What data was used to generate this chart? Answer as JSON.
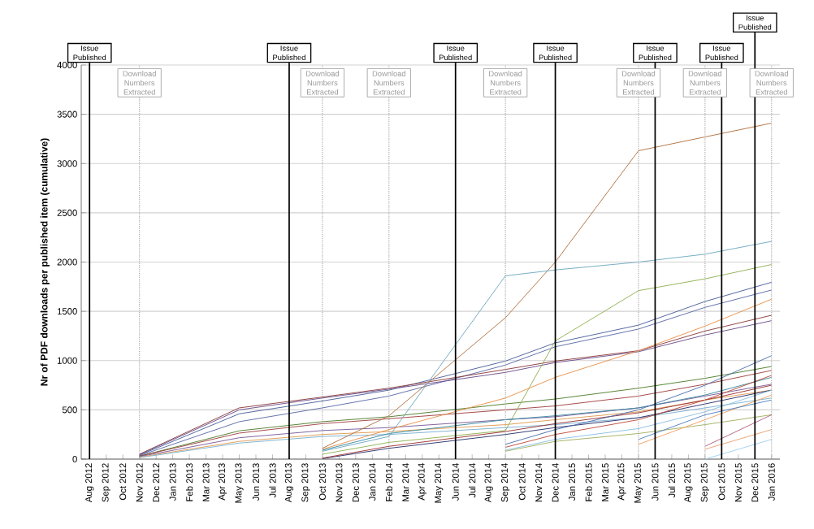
{
  "chart_data": {
    "type": "line",
    "ylabel": "Nr of PDF downloads per published item (cumulative)",
    "categories": [
      "Aug 2012",
      "Sep 2012",
      "Oct 2012",
      "Nov 2012",
      "Dec 2012",
      "Jan 2013",
      "Feb 2013",
      "Mar 2013",
      "Apr 2013",
      "May 2013",
      "Jun 2013",
      "Jul 2013",
      "Aug 2013",
      "Sep 2013",
      "Oct 2013",
      "Nov 2013",
      "Dec 2013",
      "Jan 2014",
      "Feb 2014",
      "Mar 2014",
      "Apr 2014",
      "May 2014",
      "Jun 2014",
      "Jul 2014",
      "Aug 2014",
      "Sep 2014",
      "Oct 2014",
      "Nov 2014",
      "Dec 2014",
      "Jan 2015",
      "Feb 2015",
      "Mar 2015",
      "Apr 2015",
      "May 2015",
      "Jun 2015",
      "Jul 2015",
      "Aug 2015",
      "Sep 2015",
      "Oct 2015",
      "Nov 2015",
      "Dec 2015",
      "Jan 2016"
    ],
    "ylim": [
      0,
      4000
    ],
    "yticks": [
      0,
      500,
      1000,
      1500,
      2000,
      2500,
      3000,
      3500,
      4000
    ],
    "grid": "y",
    "series": [
      {
        "color": "#4a5f9a",
        "values": [
          null,
          null,
          null,
          40,
          null,
          null,
          null,
          null,
          null,
          460,
          null,
          null,
          null,
          null,
          590,
          null,
          null,
          null,
          700,
          null,
          null,
          null,
          null,
          null,
          null,
          995,
          null,
          null,
          1180,
          null,
          null,
          null,
          null,
          1360,
          null,
          null,
          null,
          1600,
          null,
          null,
          null,
          1795
        ]
      },
      {
        "color": "#5a6aa8",
        "values": [
          null,
          null,
          null,
          35,
          null,
          null,
          null,
          null,
          null,
          380,
          null,
          null,
          null,
          null,
          520,
          null,
          null,
          null,
          640,
          null,
          null,
          null,
          null,
          null,
          null,
          955,
          null,
          null,
          1140,
          null,
          null,
          null,
          null,
          1320,
          null,
          null,
          null,
          1540,
          null,
          null,
          null,
          1716
        ]
      },
      {
        "color": "#8b3a3a",
        "values": [
          null,
          null,
          null,
          50,
          null,
          null,
          null,
          null,
          null,
          520,
          null,
          null,
          null,
          null,
          630,
          null,
          null,
          null,
          720,
          null,
          null,
          null,
          null,
          null,
          null,
          910,
          null,
          null,
          995,
          null,
          null,
          null,
          null,
          1100,
          null,
          null,
          null,
          1300,
          null,
          null,
          null,
          1460
        ]
      },
      {
        "color": "#6a4c8a",
        "values": [
          null,
          null,
          null,
          45,
          null,
          null,
          null,
          null,
          null,
          500,
          null,
          null,
          null,
          null,
          620,
          null,
          null,
          null,
          710,
          null,
          null,
          null,
          null,
          null,
          null,
          880,
          null,
          null,
          980,
          null,
          null,
          null,
          null,
          1090,
          null,
          null,
          null,
          1260,
          null,
          null,
          null,
          1405
        ]
      },
      {
        "color": "#4f7d2a",
        "values": [
          null,
          null,
          null,
          30,
          null,
          null,
          null,
          null,
          null,
          287,
          null,
          null,
          null,
          null,
          380,
          null,
          null,
          null,
          430,
          null,
          null,
          null,
          null,
          null,
          null,
          560,
          null,
          null,
          610,
          null,
          null,
          null,
          null,
          720,
          null,
          null,
          null,
          820,
          null,
          null,
          null,
          940
        ]
      },
      {
        "color": "#a04040",
        "values": [
          null,
          null,
          null,
          30,
          null,
          null,
          null,
          null,
          null,
          264,
          null,
          null,
          null,
          null,
          360,
          null,
          null,
          null,
          410,
          null,
          null,
          null,
          null,
          null,
          null,
          500,
          null,
          null,
          540,
          null,
          null,
          null,
          null,
          640,
          null,
          null,
          null,
          760,
          null,
          null,
          null,
          900
        ]
      },
      {
        "color": "#7a5a9a",
        "values": [
          null,
          null,
          null,
          25,
          null,
          null,
          null,
          null,
          null,
          217,
          null,
          null,
          null,
          null,
          290,
          null,
          null,
          null,
          320,
          null,
          null,
          null,
          null,
          null,
          null,
          400,
          null,
          null,
          430,
          null,
          null,
          null,
          null,
          520,
          null,
          null,
          null,
          640,
          null,
          null,
          null,
          760
        ]
      },
      {
        "color": "#e09a50",
        "values": [
          null,
          null,
          null,
          20,
          null,
          null,
          null,
          null,
          null,
          180,
          null,
          null,
          null,
          null,
          250,
          null,
          null,
          null,
          280,
          null,
          null,
          null,
          null,
          null,
          null,
          350,
          null,
          null,
          400,
          null,
          null,
          null,
          null,
          480,
          null,
          null,
          null,
          600,
          null,
          null,
          null,
          700
        ]
      },
      {
        "color": "#7ab0d0",
        "values": [
          null,
          null,
          null,
          15,
          null,
          null,
          null,
          null,
          null,
          163,
          null,
          null,
          null,
          null,
          230,
          null,
          null,
          null,
          250,
          null,
          null,
          null,
          null,
          null,
          null,
          320,
          null,
          null,
          350,
          null,
          null,
          null,
          null,
          420,
          null,
          null,
          null,
          520,
          null,
          null,
          null,
          620
        ]
      },
      {
        "color": "#b07040",
        "values": [
          null,
          null,
          null,
          null,
          null,
          null,
          null,
          null,
          null,
          null,
          null,
          null,
          null,
          null,
          110,
          null,
          null,
          null,
          440,
          null,
          null,
          null,
          null,
          null,
          null,
          1435,
          null,
          null,
          2000,
          null,
          null,
          null,
          null,
          3130,
          null,
          null,
          null,
          3270,
          null,
          null,
          null,
          3410
        ]
      },
      {
        "color": "#6fa8c0",
        "values": [
          null,
          null,
          null,
          null,
          null,
          null,
          null,
          null,
          null,
          null,
          null,
          null,
          null,
          null,
          80,
          null,
          null,
          null,
          230,
          null,
          null,
          null,
          null,
          null,
          null,
          1860,
          null,
          null,
          1920,
          null,
          null,
          null,
          null,
          2000,
          null,
          null,
          null,
          2080,
          null,
          null,
          null,
          2210
        ]
      },
      {
        "color": "#8fb050",
        "values": [
          null,
          null,
          null,
          null,
          null,
          null,
          null,
          null,
          null,
          null,
          null,
          null,
          null,
          null,
          50,
          null,
          null,
          null,
          170,
          null,
          null,
          null,
          null,
          null,
          null,
          290,
          null,
          null,
          1200,
          null,
          null,
          null,
          null,
          1710,
          null,
          null,
          null,
          1830,
          null,
          null,
          null,
          1975
        ]
      },
      {
        "color": "#e89048",
        "values": [
          null,
          null,
          null,
          null,
          null,
          null,
          null,
          null,
          null,
          null,
          null,
          null,
          null,
          null,
          100,
          null,
          null,
          null,
          300,
          null,
          null,
          null,
          null,
          null,
          null,
          620,
          null,
          null,
          830,
          null,
          null,
          null,
          null,
          1100,
          null,
          null,
          null,
          1350,
          null,
          null,
          null,
          1623
        ]
      },
      {
        "color": "#2a2f6a",
        "values": [
          null,
          null,
          null,
          null,
          null,
          null,
          null,
          null,
          null,
          null,
          null,
          null,
          null,
          null,
          5,
          null,
          null,
          null,
          110,
          null,
          null,
          null,
          null,
          null,
          null,
          250,
          null,
          null,
          320,
          null,
          null,
          null,
          null,
          420,
          null,
          null,
          null,
          560,
          null,
          null,
          null,
          700
        ]
      },
      {
        "color": "#9a3030",
        "values": [
          null,
          null,
          null,
          null,
          null,
          null,
          null,
          null,
          null,
          null,
          null,
          null,
          null,
          null,
          10,
          null,
          null,
          null,
          130,
          null,
          null,
          null,
          null,
          null,
          null,
          280,
          null,
          null,
          360,
          null,
          null,
          null,
          null,
          470,
          null,
          null,
          null,
          600,
          null,
          null,
          null,
          750
        ]
      },
      {
        "color": "#3a8aa0",
        "values": [
          null,
          null,
          null,
          null,
          null,
          null,
          null,
          null,
          null,
          null,
          null,
          null,
          null,
          null,
          90,
          null,
          null,
          null,
          260,
          null,
          null,
          null,
          null,
          null,
          null,
          400,
          null,
          null,
          440,
          null,
          null,
          null,
          null,
          520,
          null,
          null,
          null,
          650,
          null,
          null,
          null,
          830
        ]
      },
      {
        "color": "#4a70b0",
        "values": [
          null,
          null,
          null,
          null,
          null,
          null,
          null,
          null,
          null,
          null,
          null,
          null,
          null,
          null,
          null,
          null,
          null,
          null,
          null,
          null,
          null,
          null,
          null,
          null,
          null,
          150,
          null,
          null,
          300,
          null,
          null,
          null,
          null,
          500,
          null,
          null,
          null,
          750,
          null,
          null,
          null,
          1050
        ]
      },
      {
        "color": "#c04a3a",
        "values": [
          null,
          null,
          null,
          null,
          null,
          null,
          null,
          null,
          null,
          null,
          null,
          null,
          null,
          null,
          null,
          null,
          null,
          null,
          null,
          null,
          null,
          null,
          null,
          null,
          null,
          120,
          null,
          null,
          250,
          null,
          null,
          null,
          null,
          400,
          null,
          null,
          null,
          600,
          null,
          null,
          null,
          850
        ]
      },
      {
        "color": "#8ac0e0",
        "values": [
          null,
          null,
          null,
          null,
          null,
          null,
          null,
          null,
          null,
          null,
          null,
          null,
          null,
          null,
          null,
          null,
          null,
          null,
          null,
          null,
          null,
          null,
          null,
          null,
          null,
          90,
          null,
          null,
          200,
          null,
          null,
          null,
          null,
          310,
          null,
          null,
          null,
          480,
          null,
          null,
          null,
          700
        ]
      },
      {
        "color": "#a0b060",
        "values": [
          null,
          null,
          null,
          null,
          null,
          null,
          null,
          null,
          null,
          null,
          null,
          null,
          null,
          null,
          null,
          null,
          null,
          null,
          null,
          null,
          null,
          null,
          null,
          null,
          null,
          80,
          null,
          null,
          180,
          null,
          null,
          null,
          null,
          260,
          null,
          null,
          null,
          350,
          null,
          null,
          null,
          450
        ]
      },
      {
        "color": "#f0a060",
        "values": [
          null,
          null,
          null,
          null,
          null,
          null,
          null,
          null,
          null,
          null,
          null,
          null,
          null,
          null,
          null,
          null,
          null,
          null,
          null,
          null,
          null,
          null,
          null,
          null,
          null,
          null,
          null,
          null,
          null,
          null,
          null,
          null,
          null,
          150,
          null,
          null,
          null,
          400,
          null,
          null,
          null,
          650
        ]
      },
      {
        "color": "#5080c0",
        "values": [
          null,
          null,
          null,
          null,
          null,
          null,
          null,
          null,
          null,
          null,
          null,
          null,
          null,
          null,
          null,
          null,
          null,
          null,
          null,
          null,
          null,
          null,
          null,
          null,
          null,
          null,
          null,
          null,
          null,
          null,
          null,
          null,
          null,
          200,
          null,
          null,
          null,
          450,
          null,
          null,
          null,
          600
        ]
      },
      {
        "color": "#e8a070",
        "values": [
          null,
          null,
          null,
          null,
          null,
          null,
          null,
          null,
          null,
          null,
          null,
          null,
          null,
          null,
          null,
          null,
          null,
          null,
          null,
          null,
          null,
          null,
          null,
          null,
          null,
          null,
          null,
          null,
          null,
          null,
          null,
          null,
          null,
          null,
          null,
          null,
          null,
          100,
          null,
          null,
          null,
          300
        ]
      },
      {
        "color": "#b06080",
        "values": [
          null,
          null,
          null,
          null,
          null,
          null,
          null,
          null,
          null,
          null,
          null,
          null,
          null,
          null,
          null,
          null,
          null,
          null,
          null,
          null,
          null,
          null,
          null,
          null,
          null,
          null,
          null,
          null,
          null,
          null,
          null,
          null,
          null,
          null,
          null,
          null,
          null,
          130,
          null,
          null,
          null,
          450
        ]
      },
      {
        "color": "#a0d0f0",
        "values": [
          null,
          null,
          null,
          null,
          null,
          null,
          null,
          null,
          null,
          null,
          null,
          null,
          null,
          null,
          null,
          null,
          null,
          null,
          null,
          null,
          null,
          null,
          null,
          null,
          null,
          null,
          null,
          null,
          null,
          null,
          null,
          null,
          null,
          null,
          null,
          null,
          null,
          0,
          null,
          null,
          null,
          200
        ]
      }
    ],
    "ref_lines": [
      {
        "axis": "x",
        "value": "Aug 2012",
        "label": "Issue Published",
        "color": "#000000",
        "line_style": "solid"
      },
      {
        "axis": "x",
        "value": "Nov 2012",
        "label": "Download Numbers Extracted",
        "color": "#999999",
        "line_style": "dotted"
      },
      {
        "axis": "x",
        "value": "Aug 2013",
        "label": "Issue Published",
        "color": "#000000",
        "line_style": "solid"
      },
      {
        "axis": "x",
        "value": "Oct 2013",
        "label": "Download Numbers Extracted",
        "color": "#999999",
        "line_style": "dotted"
      },
      {
        "axis": "x",
        "value": "Feb 2014",
        "label": "Download Numbers Extracted",
        "color": "#999999",
        "line_style": "dotted"
      },
      {
        "axis": "x",
        "value": "Jun 2014",
        "label": "Issue Published",
        "color": "#000000",
        "line_style": "solid"
      },
      {
        "axis": "x",
        "value": "Sep 2014",
        "label": "Download Numbers Extracted",
        "color": "#999999",
        "line_style": "dotted"
      },
      {
        "axis": "x",
        "value": "Dec 2014",
        "label": "Issue Published",
        "color": "#000000",
        "line_style": "solid"
      },
      {
        "axis": "x",
        "value": "May 2015",
        "label": "Download Numbers Extracted",
        "color": "#999999",
        "line_style": "dotted"
      },
      {
        "axis": "x",
        "value": "Jun 2015",
        "label": "Issue Published",
        "color": "#000000",
        "line_style": "solid"
      },
      {
        "axis": "x",
        "value": "Sep 2015",
        "label": "Download Numbers Extracted",
        "color": "#999999",
        "line_style": "dotted"
      },
      {
        "axis": "x",
        "value": "Oct 2015",
        "label": "Issue Published",
        "color": "#000000",
        "line_style": "solid"
      },
      {
        "axis": "x",
        "value": "Dec 2015",
        "label": "Issue Published",
        "color": "#000000",
        "line_style": "solid"
      },
      {
        "axis": "x",
        "value": "Jan 2016",
        "label": "Download Numbers Extracted",
        "color": "#999999",
        "line_style": "dotted"
      }
    ]
  }
}
